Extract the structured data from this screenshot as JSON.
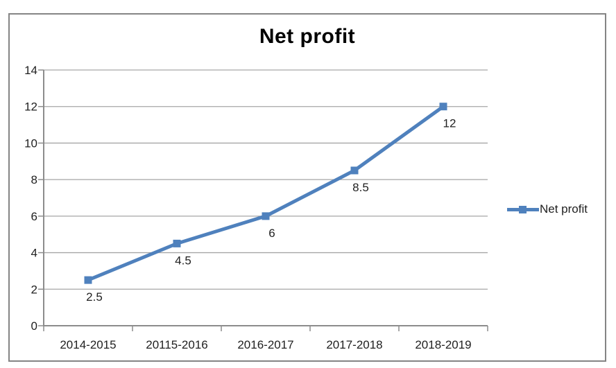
{
  "page": {
    "background": "#ffffff",
    "border_color": "#848484"
  },
  "chart_data": {
    "type": "line",
    "title": "Net profit",
    "categories": [
      "2014-2015",
      "20115-2016",
      "2016-2017",
      "2017-2018",
      "2018-2019"
    ],
    "series": [
      {
        "name": "Net profit",
        "values": [
          2.5,
          4.5,
          6,
          8.5,
          12
        ],
        "color": "#4F81BD"
      }
    ],
    "data_labels": [
      "2.5",
      "4.5",
      "6",
      "8.5",
      "12"
    ],
    "y_ticks": [
      0,
      2,
      4,
      6,
      8,
      10,
      12,
      14
    ],
    "ylim": [
      0,
      14
    ],
    "xlabel": "",
    "ylabel": "",
    "grid": "horizontal",
    "legend_position": "right",
    "colors": {
      "line": "#4F81BD",
      "gridline": "#A6A6A6",
      "axis": "#8C8C8C",
      "text": "#1f1f1f"
    }
  }
}
